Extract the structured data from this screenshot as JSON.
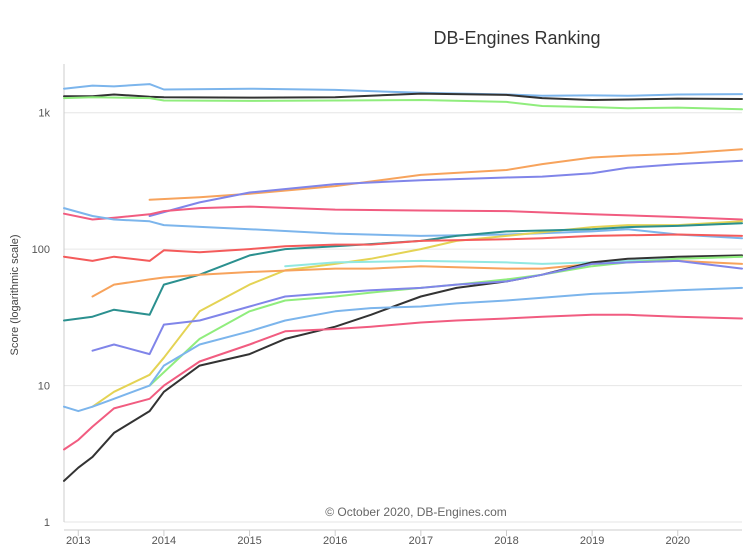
{
  "chart_data": {
    "type": "line",
    "title": "DB-Engines Ranking",
    "ylabel": "Score (logarithmic scale)",
    "xlabel": "",
    "yscale": "log",
    "ylim": [
      1,
      2200
    ],
    "xlim": [
      "2012-11",
      "2020-10"
    ],
    "yticks": [
      {
        "value": 1,
        "label": "1"
      },
      {
        "value": 10,
        "label": "10"
      },
      {
        "value": 100,
        "label": "100"
      },
      {
        "value": 1000,
        "label": "1k"
      }
    ],
    "xticks": [
      {
        "value": "2013-01",
        "label": "2013"
      },
      {
        "value": "2014-01",
        "label": "2014"
      },
      {
        "value": "2015-01",
        "label": "2015"
      },
      {
        "value": "2016-01",
        "label": "2016"
      },
      {
        "value": "2017-01",
        "label": "2017"
      },
      {
        "value": "2018-01",
        "label": "2018"
      },
      {
        "value": "2019-01",
        "label": "2019"
      },
      {
        "value": "2020-01",
        "label": "2020"
      }
    ],
    "grid": true,
    "legend": "none",
    "credit": "© October 2020, DB-Engines.com",
    "series": [
      {
        "color": "#7cb5ec",
        "points": [
          [
            "2012-11",
            1500
          ],
          [
            "2013-03",
            1580
          ],
          [
            "2013-06",
            1560
          ],
          [
            "2013-11",
            1620
          ],
          [
            "2014-01",
            1480
          ],
          [
            "2015-01",
            1500
          ],
          [
            "2016-01",
            1470
          ],
          [
            "2017-01",
            1400
          ],
          [
            "2018-01",
            1360
          ],
          [
            "2018-06",
            1330
          ],
          [
            "2019-01",
            1340
          ],
          [
            "2019-06",
            1330
          ],
          [
            "2020-01",
            1360
          ],
          [
            "2020-10",
            1370
          ]
        ]
      },
      {
        "color": "#333333",
        "points": [
          [
            "2012-11",
            1320
          ],
          [
            "2013-03",
            1320
          ],
          [
            "2013-06",
            1360
          ],
          [
            "2013-11",
            1310
          ],
          [
            "2014-01",
            1300
          ],
          [
            "2015-01",
            1290
          ],
          [
            "2016-01",
            1300
          ],
          [
            "2017-01",
            1380
          ],
          [
            "2018-01",
            1350
          ],
          [
            "2018-06",
            1280
          ],
          [
            "2019-01",
            1240
          ],
          [
            "2019-06",
            1250
          ],
          [
            "2020-01",
            1270
          ],
          [
            "2020-10",
            1260
          ]
        ]
      },
      {
        "color": "#90ed7d",
        "points": [
          [
            "2012-11",
            1280
          ],
          [
            "2013-03",
            1300
          ],
          [
            "2013-11",
            1280
          ],
          [
            "2014-01",
            1230
          ],
          [
            "2015-01",
            1220
          ],
          [
            "2016-01",
            1230
          ],
          [
            "2017-01",
            1240
          ],
          [
            "2018-01",
            1200
          ],
          [
            "2018-06",
            1120
          ],
          [
            "2019-01",
            1100
          ],
          [
            "2019-06",
            1080
          ],
          [
            "2020-01",
            1090
          ],
          [
            "2020-10",
            1060
          ]
        ]
      },
      {
        "color": "#f7a35c",
        "points": [
          [
            "2013-11",
            230
          ],
          [
            "2014-06",
            240
          ],
          [
            "2015-01",
            255
          ],
          [
            "2016-01",
            290
          ],
          [
            "2017-01",
            350
          ],
          [
            "2018-01",
            380
          ],
          [
            "2018-06",
            420
          ],
          [
            "2019-01",
            470
          ],
          [
            "2019-06",
            485
          ],
          [
            "2020-01",
            500
          ],
          [
            "2020-10",
            540
          ]
        ]
      },
      {
        "color": "#8085e9",
        "points": [
          [
            "2013-11",
            175
          ],
          [
            "2014-06",
            220
          ],
          [
            "2015-01",
            260
          ],
          [
            "2016-01",
            300
          ],
          [
            "2017-01",
            320
          ],
          [
            "2018-01",
            335
          ],
          [
            "2018-06",
            340
          ],
          [
            "2019-01",
            360
          ],
          [
            "2019-06",
            395
          ],
          [
            "2020-01",
            420
          ],
          [
            "2020-10",
            445
          ]
        ]
      },
      {
        "color": "#f15c80",
        "points": [
          [
            "2012-11",
            182
          ],
          [
            "2013-03",
            165
          ],
          [
            "2013-06",
            170
          ],
          [
            "2013-11",
            180
          ],
          [
            "2014-01",
            190
          ],
          [
            "2014-06",
            200
          ],
          [
            "2015-01",
            205
          ],
          [
            "2016-01",
            195
          ],
          [
            "2017-01",
            192
          ],
          [
            "2018-01",
            190
          ],
          [
            "2019-01",
            180
          ],
          [
            "2020-01",
            172
          ],
          [
            "2020-10",
            165
          ]
        ]
      },
      {
        "color": "#7cb5ec",
        "points": [
          [
            "2012-11",
            200
          ],
          [
            "2013-03",
            175
          ],
          [
            "2013-06",
            165
          ],
          [
            "2013-11",
            160
          ],
          [
            "2014-01",
            150
          ],
          [
            "2015-01",
            140
          ],
          [
            "2016-01",
            130
          ],
          [
            "2017-01",
            125
          ],
          [
            "2018-01",
            128
          ],
          [
            "2019-01",
            135
          ],
          [
            "2019-06",
            140
          ],
          [
            "2020-01",
            128
          ],
          [
            "2020-10",
            120
          ]
        ]
      },
      {
        "color": "#e4d354",
        "points": [
          [
            "2013-03",
            7
          ],
          [
            "2013-06",
            9
          ],
          [
            "2013-11",
            12
          ],
          [
            "2014-01",
            16
          ],
          [
            "2014-06",
            35
          ],
          [
            "2015-01",
            55
          ],
          [
            "2015-06",
            70
          ],
          [
            "2016-01",
            78
          ],
          [
            "2016-06",
            85
          ],
          [
            "2017-01",
            100
          ],
          [
            "2017-06",
            115
          ],
          [
            "2018-01",
            125
          ],
          [
            "2019-01",
            145
          ],
          [
            "2019-06",
            150
          ],
          [
            "2020-01",
            150
          ],
          [
            "2020-10",
            160
          ]
        ]
      },
      {
        "color": "#2b908f",
        "points": [
          [
            "2012-11",
            30
          ],
          [
            "2013-03",
            32
          ],
          [
            "2013-06",
            36
          ],
          [
            "2013-11",
            33
          ],
          [
            "2014-01",
            55
          ],
          [
            "2014-06",
            65
          ],
          [
            "2015-01",
            90
          ],
          [
            "2015-06",
            100
          ],
          [
            "2016-01",
            105
          ],
          [
            "2017-01",
            115
          ],
          [
            "2017-06",
            125
          ],
          [
            "2018-01",
            135
          ],
          [
            "2019-01",
            140
          ],
          [
            "2019-06",
            145
          ],
          [
            "2020-01",
            148
          ],
          [
            "2020-10",
            155
          ]
        ]
      },
      {
        "color": "#f45b5b",
        "points": [
          [
            "2012-11",
            88
          ],
          [
            "2013-03",
            82
          ],
          [
            "2013-06",
            88
          ],
          [
            "2013-11",
            82
          ],
          [
            "2014-01",
            98
          ],
          [
            "2014-06",
            95
          ],
          [
            "2015-01",
            100
          ],
          [
            "2015-06",
            105
          ],
          [
            "2016-01",
            108
          ],
          [
            "2016-06",
            108
          ],
          [
            "2017-01",
            115
          ],
          [
            "2018-01",
            118
          ],
          [
            "2018-06",
            120
          ],
          [
            "2019-01",
            125
          ],
          [
            "2020-01",
            128
          ],
          [
            "2020-10",
            125
          ]
        ]
      },
      {
        "color": "#f7a35c",
        "points": [
          [
            "2013-03",
            45
          ],
          [
            "2013-06",
            55
          ],
          [
            "2013-11",
            60
          ],
          [
            "2014-01",
            62
          ],
          [
            "2014-06",
            65
          ],
          [
            "2015-01",
            68
          ],
          [
            "2016-01",
            72
          ],
          [
            "2016-06",
            72
          ],
          [
            "2017-01",
            75
          ],
          [
            "2018-01",
            72
          ],
          [
            "2018-06",
            72
          ],
          [
            "2019-01",
            78
          ],
          [
            "2019-06",
            80
          ],
          [
            "2020-01",
            82
          ],
          [
            "2020-10",
            78
          ]
        ]
      },
      {
        "color": "#91e8e1",
        "points": [
          [
            "2015-06",
            75
          ],
          [
            "2016-01",
            80
          ],
          [
            "2017-01",
            82
          ],
          [
            "2018-01",
            80
          ],
          [
            "2018-06",
            78
          ],
          [
            "2019-01",
            80
          ],
          [
            "2019-06",
            82
          ],
          [
            "2020-01",
            85
          ],
          [
            "2020-10",
            88
          ]
        ]
      },
      {
        "color": "#333333",
        "points": [
          [
            "2012-11",
            2
          ],
          [
            "2013-01",
            2.5
          ],
          [
            "2013-03",
            3
          ],
          [
            "2013-06",
            4.5
          ],
          [
            "2013-11",
            6.5
          ],
          [
            "2014-01",
            9
          ],
          [
            "2014-06",
            14
          ],
          [
            "2015-01",
            17
          ],
          [
            "2015-06",
            22
          ],
          [
            "2016-01",
            27
          ],
          [
            "2016-06",
            33
          ],
          [
            "2017-01",
            45
          ],
          [
            "2017-06",
            52
          ],
          [
            "2018-01",
            58
          ],
          [
            "2018-06",
            65
          ],
          [
            "2019-01",
            80
          ],
          [
            "2019-06",
            85
          ],
          [
            "2020-01",
            88
          ],
          [
            "2020-10",
            90
          ]
        ]
      },
      {
        "color": "#90ed7d",
        "points": [
          [
            "2013-11",
            10
          ],
          [
            "2014-06",
            22
          ],
          [
            "2015-01",
            35
          ],
          [
            "2015-06",
            42
          ],
          [
            "2016-01",
            45
          ],
          [
            "2016-06",
            48
          ],
          [
            "2017-01",
            52
          ],
          [
            "2017-06",
            55
          ],
          [
            "2018-01",
            60
          ],
          [
            "2018-06",
            65
          ],
          [
            "2019-01",
            75
          ],
          [
            "2019-06",
            80
          ],
          [
            "2020-01",
            85
          ],
          [
            "2020-10",
            88
          ]
        ]
      },
      {
        "color": "#8085e9",
        "points": [
          [
            "2013-03",
            18
          ],
          [
            "2013-06",
            20
          ],
          [
            "2013-11",
            17
          ],
          [
            "2014-01",
            28
          ],
          [
            "2014-06",
            30
          ],
          [
            "2015-01",
            38
          ],
          [
            "2015-06",
            45
          ],
          [
            "2016-01",
            48
          ],
          [
            "2016-06",
            50
          ],
          [
            "2017-01",
            52
          ],
          [
            "2017-06",
            55
          ],
          [
            "2018-01",
            58
          ],
          [
            "2018-06",
            65
          ],
          [
            "2019-01",
            78
          ],
          [
            "2019-06",
            80
          ],
          [
            "2020-01",
            82
          ],
          [
            "2020-10",
            72
          ]
        ]
      },
      {
        "color": "#7cb5ec",
        "points": [
          [
            "2012-11",
            7
          ],
          [
            "2013-01",
            6.5
          ],
          [
            "2013-03",
            7
          ],
          [
            "2013-06",
            8
          ],
          [
            "2013-11",
            10
          ],
          [
            "2014-01",
            14
          ],
          [
            "2014-06",
            20
          ],
          [
            "2015-01",
            25
          ],
          [
            "2015-06",
            30
          ],
          [
            "2016-01",
            35
          ],
          [
            "2016-06",
            37
          ],
          [
            "2017-01",
            38
          ],
          [
            "2017-06",
            40
          ],
          [
            "2018-01",
            42
          ],
          [
            "2018-06",
            44
          ],
          [
            "2019-01",
            47
          ],
          [
            "2019-06",
            48
          ],
          [
            "2020-01",
            50
          ],
          [
            "2020-10",
            52
          ]
        ]
      },
      {
        "color": "#f15c80",
        "points": [
          [
            "2012-11",
            3.4
          ],
          [
            "2013-01",
            4
          ],
          [
            "2013-03",
            5
          ],
          [
            "2013-06",
            6.8
          ],
          [
            "2013-11",
            8
          ],
          [
            "2014-01",
            10
          ],
          [
            "2014-06",
            15
          ],
          [
            "2015-01",
            20
          ],
          [
            "2015-06",
            25
          ],
          [
            "2016-01",
            26
          ],
          [
            "2016-06",
            27
          ],
          [
            "2017-01",
            29
          ],
          [
            "2017-06",
            30
          ],
          [
            "2018-01",
            31
          ],
          [
            "2018-06",
            32
          ],
          [
            "2019-01",
            33
          ],
          [
            "2019-06",
            33
          ],
          [
            "2020-01",
            32
          ],
          [
            "2020-10",
            31
          ]
        ]
      }
    ]
  }
}
